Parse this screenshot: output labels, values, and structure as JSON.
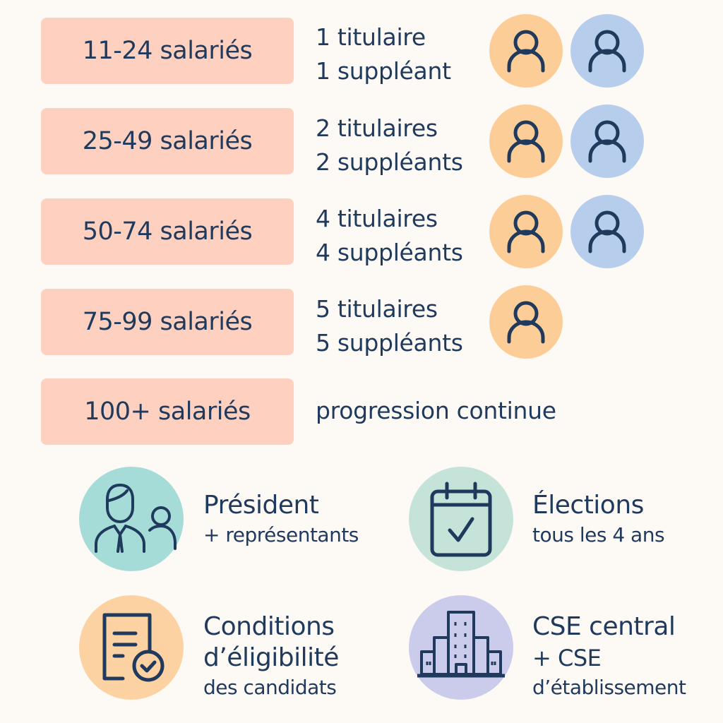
{
  "rows": [
    {
      "range": "11-24 salariés",
      "line1": "1 titulaire",
      "line2": "1 suppléant",
      "icons": [
        "person-orange",
        "person-blue"
      ]
    },
    {
      "range": "25-49 salariés",
      "line1": "2 titulaires",
      "line2": "2 suppléants",
      "icons": [
        "person-orange",
        "person-blue"
      ]
    },
    {
      "range": "50-74 salariés",
      "line1": "4 titulaires",
      "line2": "4 suppléants",
      "icons": [
        "person-orange",
        "person-blue"
      ]
    },
    {
      "range": "75-99 salariés",
      "line1": "5 titulaires",
      "line2": "5 suppléants",
      "icons": [
        "person-orange"
      ]
    },
    {
      "range": "100+ salariés",
      "line1": "progression continue"
    }
  ],
  "features": [
    {
      "icon": "people-icon",
      "title": "Président",
      "sub": "+ représentants",
      "color": "#a5dcd8"
    },
    {
      "icon": "calendar-check-icon",
      "title": "Élections",
      "sub": "tous les 4 ans",
      "color": "#c6e3da"
    },
    {
      "icon": "document-check-icon",
      "title": "Conditions",
      "title2": "d’éligibilité",
      "sub": "des candidats",
      "color": "#fdd2a3"
    },
    {
      "icon": "building-icon",
      "title": "CSE central",
      "title2": "+ CSE",
      "sub": "d’établissement",
      "color": "#cbcbec"
    }
  ],
  "colors": {
    "range_box": "#fdd0bf",
    "text": "#1f3a5c",
    "person_orange": "#fdcd98",
    "person_blue": "#b6cdec"
  }
}
